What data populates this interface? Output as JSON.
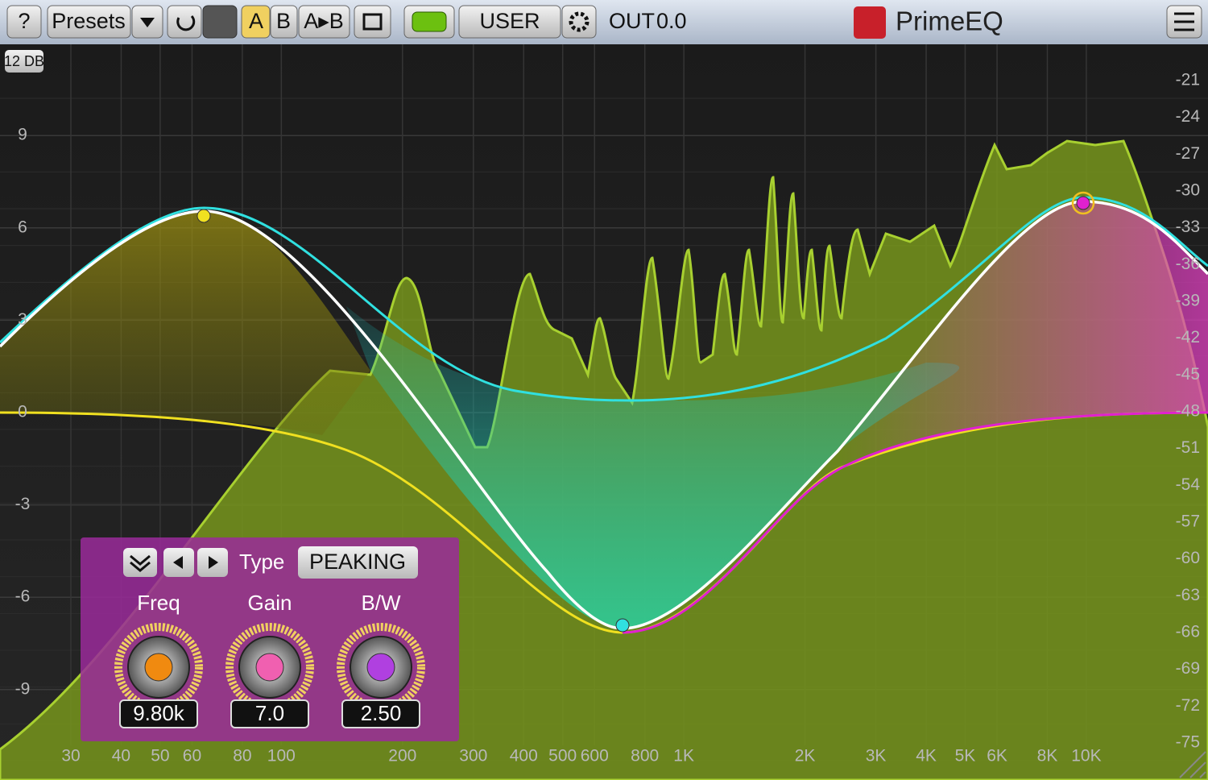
{
  "toolbar": {
    "help": "?",
    "presets": "Presets",
    "a": "A",
    "b": "B",
    "a_to_b": "A▸B",
    "mode": "USER",
    "out_label": "OUT",
    "out_value": "0.0",
    "brand": "PrimeEQ"
  },
  "graph": {
    "range_button": "12 DB",
    "gain_ticks": [
      9,
      6,
      3,
      0,
      -3,
      -6,
      -9
    ],
    "level_ticks": [
      -21,
      -24,
      -27,
      -30,
      -33,
      -36,
      -39,
      -42,
      -45,
      -48,
      -51,
      -54,
      -57,
      -60,
      -63,
      -66,
      -69,
      -72,
      -75
    ],
    "freq_ticks": [
      30,
      40,
      50,
      60,
      80,
      100,
      200,
      300,
      400,
      500,
      600,
      800,
      {
        "value": 1000,
        "label": "1K"
      },
      {
        "value": 2000,
        "label": "2K"
      },
      {
        "value": 3000,
        "label": "3K"
      },
      {
        "value": 4000,
        "label": "4K"
      },
      {
        "value": 5000,
        "label": "5K"
      },
      {
        "value": 6000,
        "label": "6K"
      },
      {
        "value": 8000,
        "label": "8K"
      },
      {
        "value": 10000,
        "label": "10K"
      }
    ]
  },
  "band_panel": {
    "type_label": "Type",
    "type_value": "PEAKING",
    "controls": [
      {
        "label": "Freq",
        "value": "9.80k"
      },
      {
        "label": "Gain",
        "value": "7.0"
      },
      {
        "label": "B/W",
        "value": "2.50"
      }
    ]
  }
}
